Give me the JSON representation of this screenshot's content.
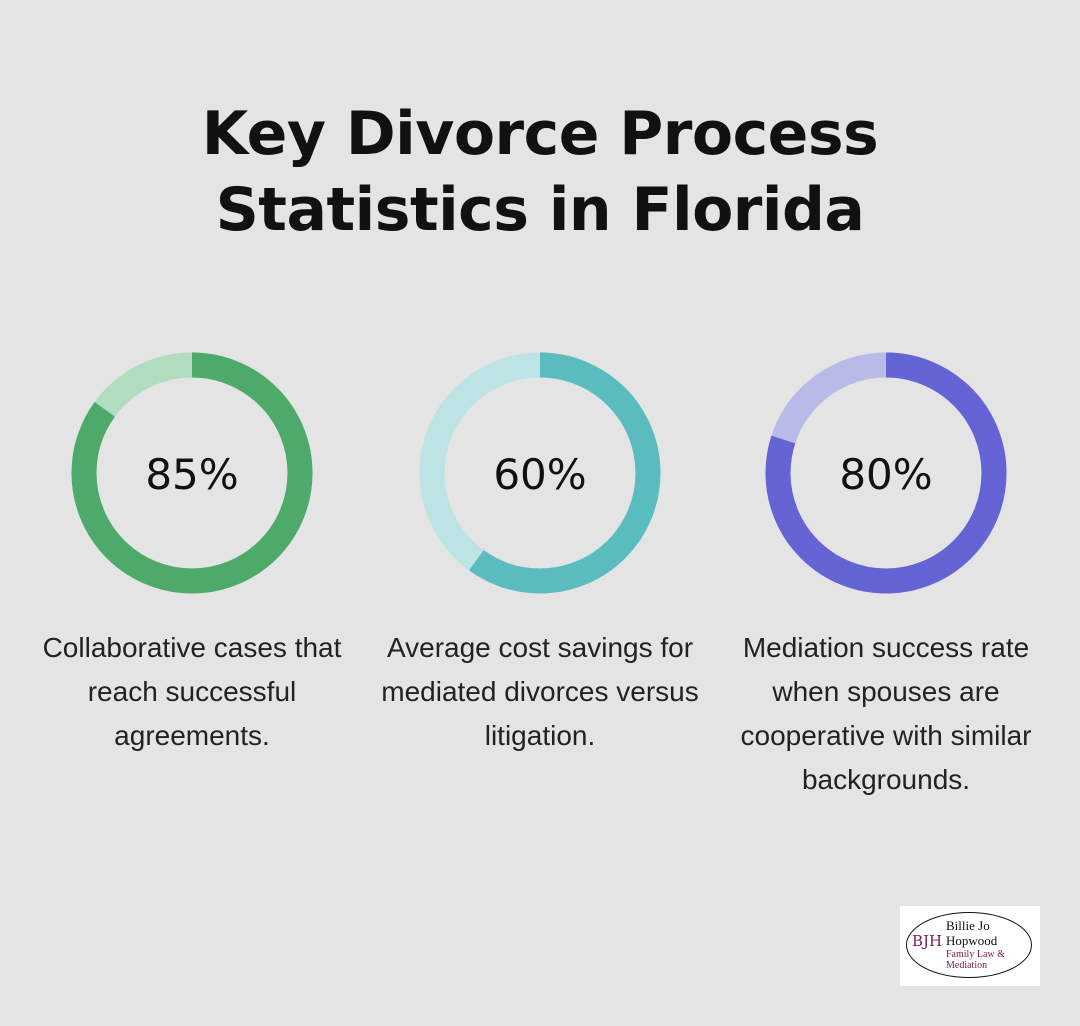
{
  "title_line1": "Key Divorce Process",
  "title_line2": "Statistics in Florida",
  "chart_data": [
    {
      "type": "pie",
      "value": 85,
      "label": "85%",
      "description": "Collaborative cases that reach successful agreements.",
      "color": "#4daa6b",
      "track_color": "#b2dcc0"
    },
    {
      "type": "pie",
      "value": 60,
      "label": "60%",
      "description": "Average cost savings for mediated divorces versus litigation.",
      "color": "#5bbcc0",
      "track_color": "#bde3e4"
    },
    {
      "type": "pie",
      "value": 80,
      "label": "80%",
      "description": "Mediation success rate when spouses are cooperative with similar backgrounds.",
      "color": "#6464d4",
      "track_color": "#b8bbe8"
    }
  ],
  "logo": {
    "monogram": "BJH",
    "name_line1": "Billie Jo",
    "name_line2": "Hopwood",
    "sub_line1": "Family Law &",
    "sub_line2": "Mediation"
  }
}
